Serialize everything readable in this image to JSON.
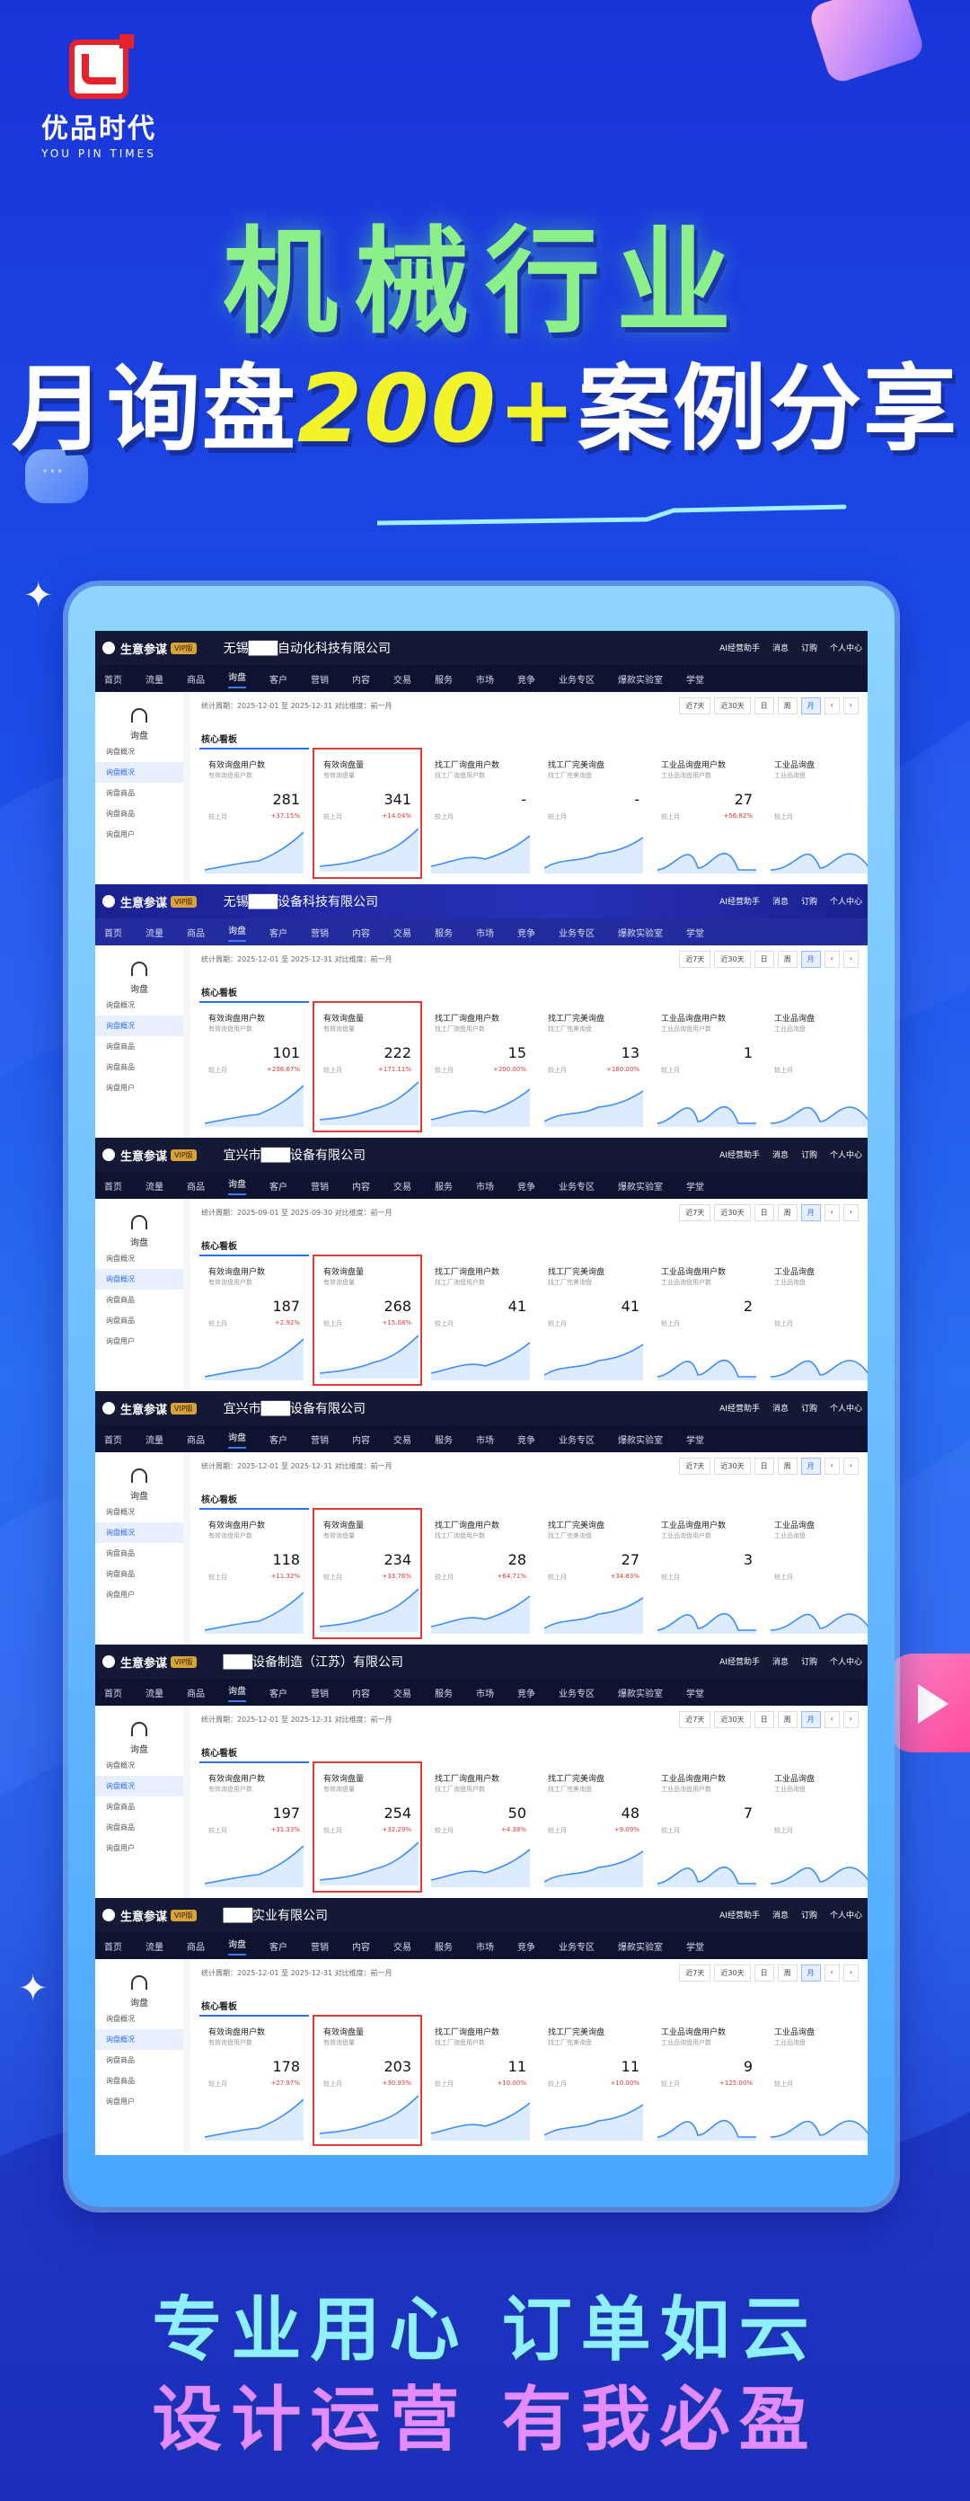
{
  "logo": {
    "name_cn": "优品时代",
    "name_en": "YOU PIN TIMES"
  },
  "headline": {
    "line1": "机械行业",
    "line2_a": "月询盘",
    "line2_highlight": "200+",
    "line2_b": "案例分享"
  },
  "slogan": {
    "line1": "专业用心 订单如云",
    "line2": "设计运营 有我必盈"
  },
  "colors": {
    "accent_blue": "#2f6bff",
    "highlight_red": "#e53935",
    "headline_green": "#8cf08a",
    "headline_yellow": "#f3f32a"
  },
  "nav": [
    "首页",
    "流量",
    "商品",
    "询盘",
    "客户",
    "营销",
    "内容",
    "交易",
    "服务",
    "市场",
    "竞争",
    "业务专区",
    "爆款实验室",
    "学堂"
  ],
  "top_right": [
    "AI经营助手",
    "消息",
    "订购",
    "个人中心"
  ],
  "app_name": "生意参谋",
  "vip_badge": "VIP版",
  "side": {
    "heading": "询盘",
    "items": [
      "询盘概况",
      "询盘概况",
      "询盘商品",
      "询盘商品",
      "询盘用户"
    ]
  },
  "controls": [
    "近7天",
    "近30天",
    "日",
    "周",
    "月",
    "‹",
    "›"
  ],
  "board_title": "核心看板",
  "card_titles": [
    "有效询盘用户数",
    "有效询盘量",
    "找工厂询盘用户数",
    "找工厂完美询盘",
    "工业品询盘用户数",
    "工业品询盘"
  ],
  "card_subs": [
    "有效询盘用户数",
    "有效询盘量",
    "找工厂询盘用户数",
    "找工厂完美询盘",
    "工业品询盘用户数",
    "工业品询盘"
  ],
  "compare_label": "较上月",
  "panels": [
    {
      "company": "无锡███自动化科技有限公司",
      "period": "统计周期：2025-12-01 至 2025-12-31   对比维度：前一月",
      "values": [
        "281",
        "341",
        "-",
        "-",
        "27",
        ""
      ],
      "growth": [
        "+37.15%",
        "+14.04%",
        "",
        "",
        "+56.82%",
        ""
      ]
    },
    {
      "company": "无锡███设备科技有限公司",
      "period": "统计周期：2025-12-01 至 2025-12-31   对比维度：前一月",
      "values": [
        "101",
        "222",
        "15",
        "13",
        "1",
        ""
      ],
      "growth": [
        "+236.67%",
        "+171.11%",
        "+200.00%",
        "+160.00%",
        "",
        ""
      ]
    },
    {
      "company": "宜兴市███设备有限公司",
      "period": "统计周期：2025-09-01 至 2025-09-30   对比维度：前一月",
      "values": [
        "187",
        "268",
        "41",
        "41",
        "2",
        ""
      ],
      "growth": [
        "+2.92%",
        "+15.08%",
        "",
        "",
        "",
        ""
      ]
    },
    {
      "company": "宜兴市███设备有限公司",
      "period": "统计周期：2025-12-01 至 2025-12-31   对比维度：前一月",
      "values": [
        "118",
        "234",
        "28",
        "27",
        "3",
        ""
      ],
      "growth": [
        "+11.32%",
        "+33.76%",
        "+64.71%",
        "+34.83%",
        "",
        ""
      ]
    },
    {
      "company": "███设备制造（江苏）有限公司",
      "period": "统计周期：2025-12-01 至 2025-12-31   对比维度：前一月",
      "values": [
        "197",
        "254",
        "50",
        "48",
        "7",
        ""
      ],
      "growth": [
        "+31.33%",
        "+32.29%",
        "+4.38%",
        "+9.09%",
        "",
        ""
      ]
    },
    {
      "company": "███实业有限公司",
      "period": "统计周期：2025-12-01 至 2025-12-31   对比维度：前一月",
      "values": [
        "178",
        "203",
        "11",
        "11",
        "9",
        ""
      ],
      "growth": [
        "+27.97%",
        "+30.93%",
        "+10.00%",
        "+10.00%",
        "+125.00%",
        ""
      ]
    }
  ]
}
